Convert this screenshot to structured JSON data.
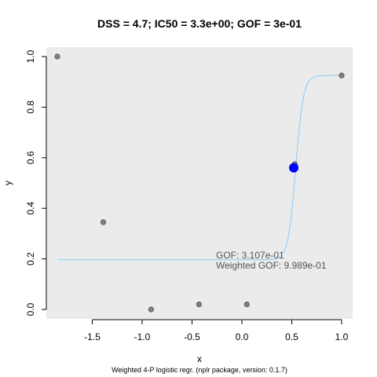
{
  "chart_data": {
    "type": "scatter",
    "title": "DSS = 4.7; IC50 = 3.3e+00; GOF = 3e-01",
    "xlabel": "x",
    "ylabel": "y",
    "xlim": [
      -1.85,
      1.0
    ],
    "ylim": [
      0.0,
      1.0
    ],
    "x_ticks": [
      -1.5,
      -1.0,
      -0.5,
      0.0,
      0.5,
      1.0
    ],
    "x_tick_labels": [
      "-1.5",
      "-1.0",
      "-0.5",
      "0.0",
      "0.5",
      "1.0"
    ],
    "y_ticks": [
      0.0,
      0.2,
      0.4,
      0.6,
      0.8,
      1.0
    ],
    "y_tick_labels": [
      "0.0",
      "0.2",
      "0.4",
      "0.6",
      "0.8",
      "1.0"
    ],
    "points": [
      {
        "x": -1.85,
        "y": 1.0
      },
      {
        "x": -1.39,
        "y": 0.345
      },
      {
        "x": -0.91,
        "y": 0.0
      },
      {
        "x": -0.43,
        "y": 0.02
      },
      {
        "x": 0.05,
        "y": 0.02
      },
      {
        "x": 0.53,
        "y": 0.575
      },
      {
        "x": 1.0,
        "y": 0.925
      }
    ],
    "ic50_point": {
      "x": 0.52,
      "y": 0.56
    },
    "fit_curve": {
      "type": "4-parameter logistic",
      "bottom": 0.197,
      "top": 0.925,
      "midpoint_x": 0.54,
      "steepness": 26
    },
    "annotations": [
      "GOF: 3.107e-01",
      "Weighted GOF: 9.989e-01"
    ],
    "caption": "Weighted 4-P logistic regr. (nplr package, version: 0.1.7)",
    "colors": {
      "panel_background": "#ebebeb",
      "curve": "#87cefa",
      "points": "#7f7f7f",
      "ic50": "#0000ff"
    },
    "grid": false
  }
}
